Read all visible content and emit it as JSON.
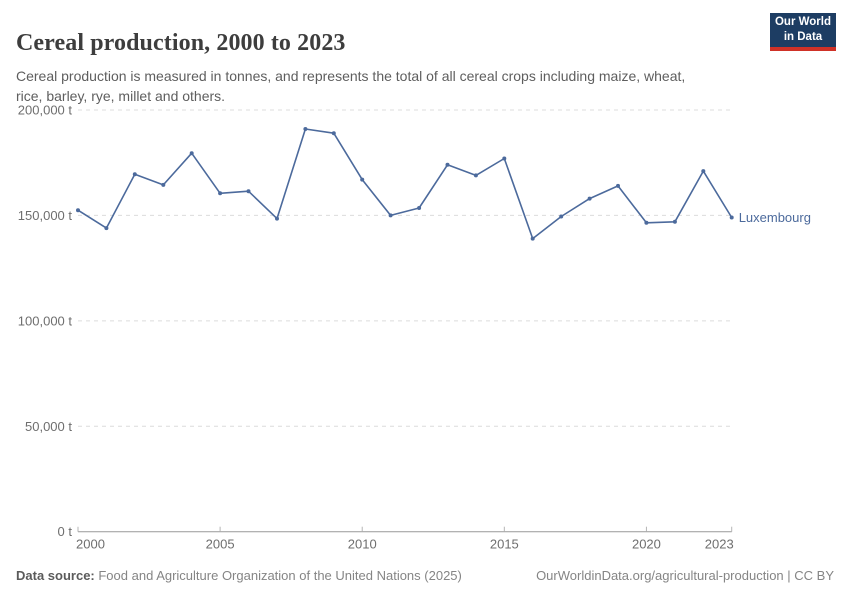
{
  "header": {
    "title": "Cereal production, 2000 to 2023",
    "subtitle": "Cereal production is measured in tonnes, and represents the total of all cereal crops including maize, wheat, rice, barley, rye, millet and others.",
    "logo": {
      "line1": "Our World",
      "line2": "in Data"
    }
  },
  "chart_data": {
    "type": "line",
    "title": "Cereal production, 2000 to 2023",
    "unit": "tonnes",
    "x": [
      2000,
      2001,
      2002,
      2003,
      2004,
      2005,
      2006,
      2007,
      2008,
      2009,
      2010,
      2011,
      2012,
      2013,
      2014,
      2015,
      2016,
      2017,
      2018,
      2019,
      2020,
      2021,
      2022,
      2023
    ],
    "series": [
      {
        "name": "Luxembourg",
        "color": "#4c6a9c",
        "values": [
          152500,
          144000,
          169500,
          164500,
          179500,
          160500,
          161500,
          148500,
          191000,
          189000,
          167000,
          150000,
          153500,
          174000,
          169000,
          177000,
          139000,
          149500,
          158000,
          164000,
          146500,
          147000,
          171000,
          149000
        ]
      }
    ],
    "ylim": [
      0,
      200000
    ],
    "yticks": [
      {
        "value": 0,
        "label": "0 t"
      },
      {
        "value": 50000,
        "label": "50,000 t"
      },
      {
        "value": 100000,
        "label": "100,000 t"
      },
      {
        "value": 150000,
        "label": "150,000 t"
      },
      {
        "value": 200000,
        "label": "200,000 t"
      }
    ],
    "xticks": [
      {
        "value": 2000,
        "label": "2000"
      },
      {
        "value": 2005,
        "label": "2005"
      },
      {
        "value": 2010,
        "label": "2010"
      },
      {
        "value": 2015,
        "label": "2015"
      },
      {
        "value": 2020,
        "label": "2020"
      },
      {
        "value": 2023,
        "label": "2023"
      }
    ],
    "grid": true,
    "legend_position": "end-of-line"
  },
  "footer": {
    "datasource_label": "Data source:",
    "datasource_value": " Food and Agriculture Organization of the United Nations (2025)",
    "link": "OurWorldinData.org/agricultural-production | CC BY"
  },
  "colors": {
    "line": "#4c6a9c",
    "gridline": "#dcdcdc",
    "axis": "#999999",
    "tick_label": "#6e6e6e",
    "logo_bg": "#1d3d63",
    "logo_accent": "#cf3127"
  }
}
